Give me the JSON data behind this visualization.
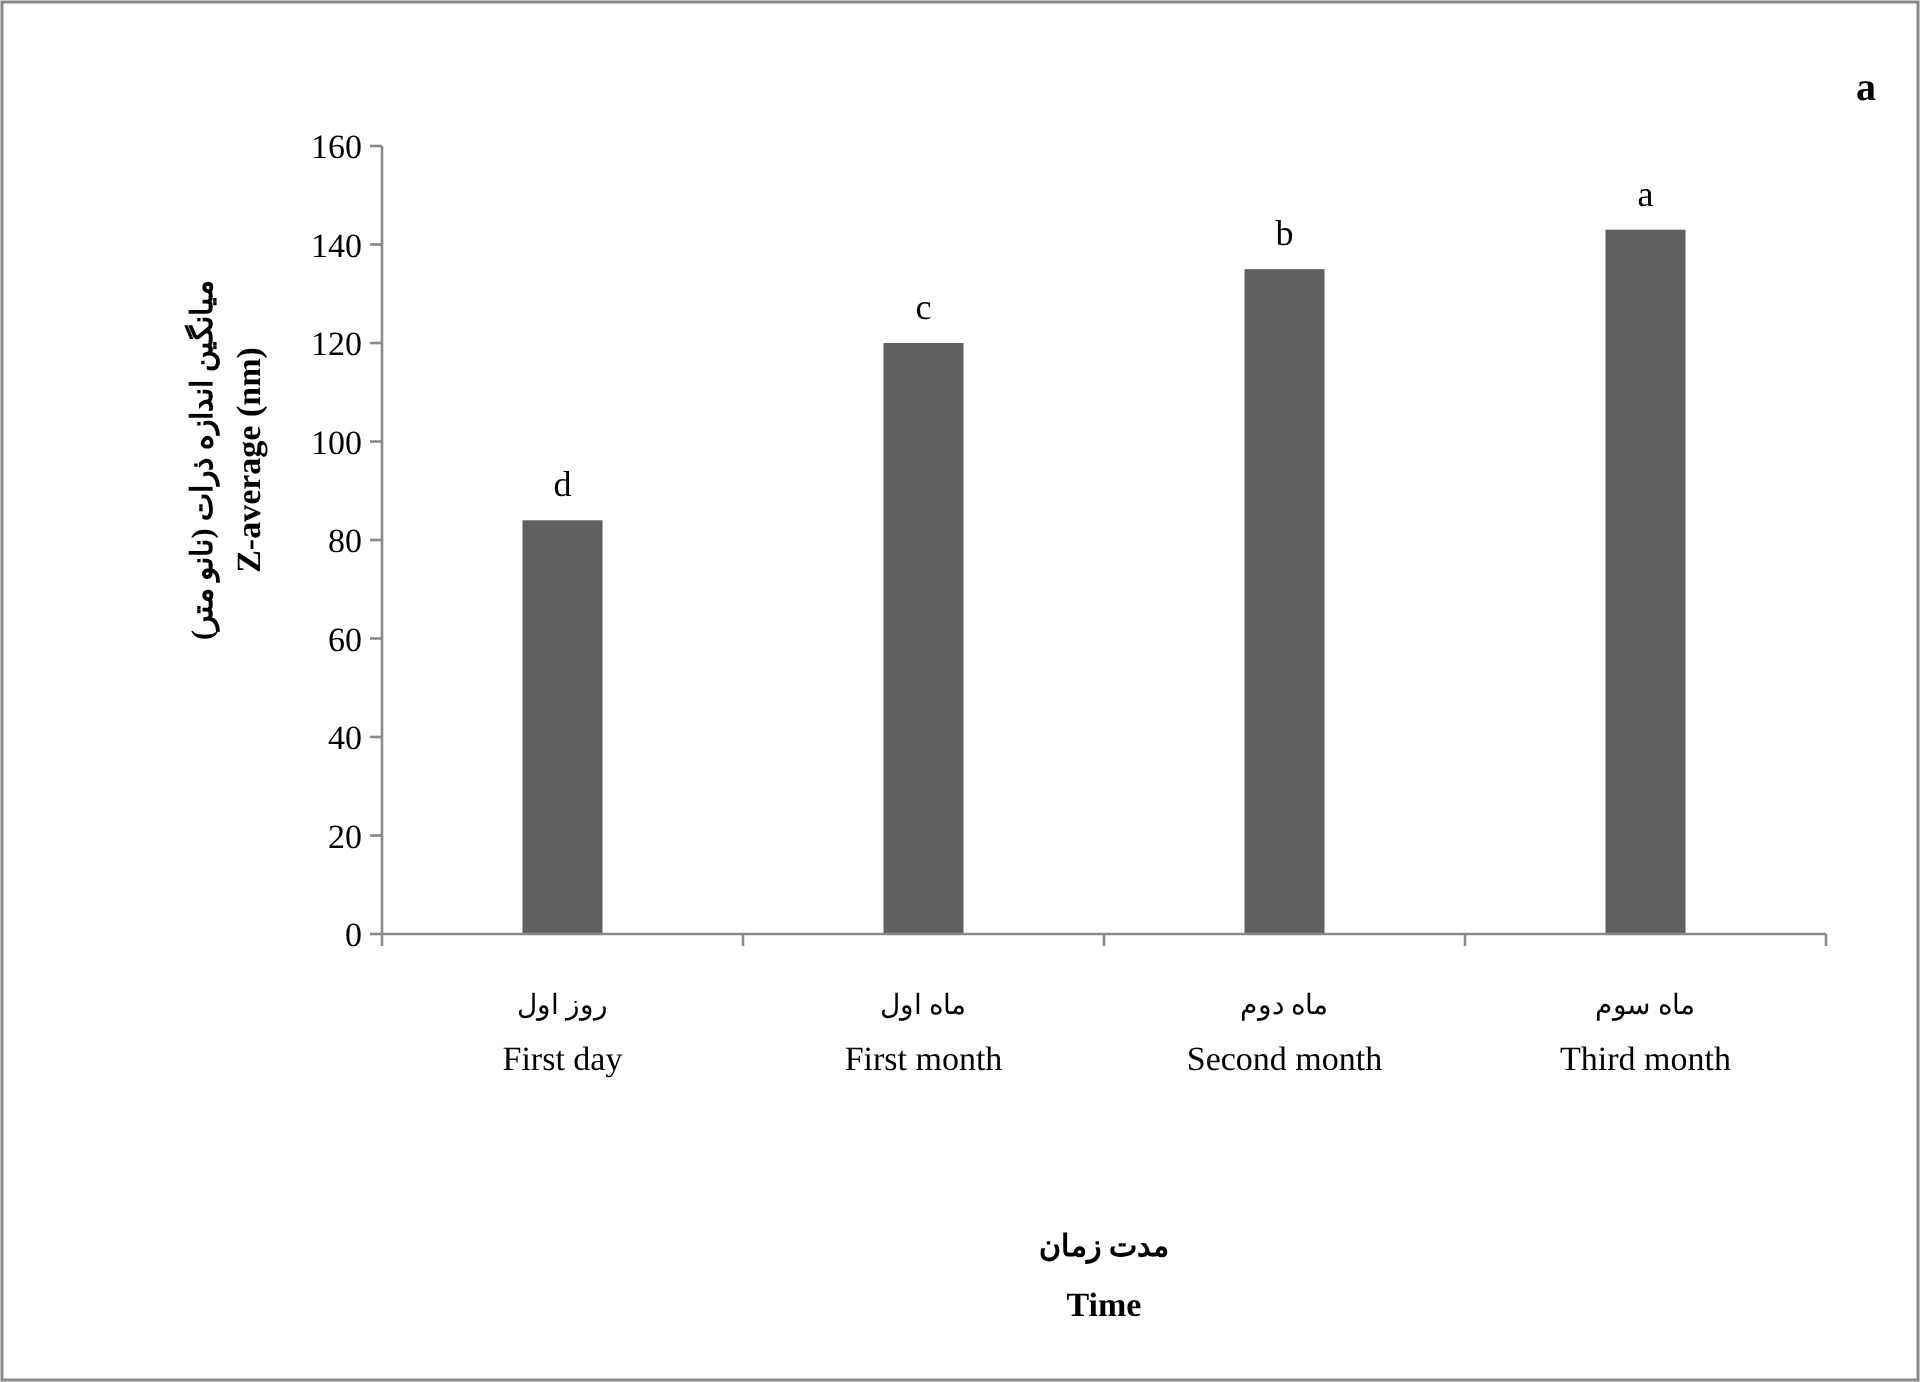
{
  "chart_data": {
    "type": "bar",
    "categories": [
      "روز اول\nFirst day",
      "ماه اول\nFirst month",
      "ماه دوم\nSecond  month",
      "ماه سوم\nThird month"
    ],
    "values": [
      84,
      120,
      135,
      143
    ],
    "color": "#606060",
    "xlabel": "مدت زمان\nTime",
    "ylabel": "میانگین اندازه ذرات (نانو متر)\nZ-average (nm)",
    "ylim": [
      0,
      160
    ],
    "yticks": [
      0,
      20,
      40,
      60,
      80,
      100,
      120,
      140,
      160
    ],
    "grid": false,
    "annotations": [
      "a",
      {
        "text": "d",
        "x": "روز اول\nFirst day",
        "y": 84
      },
      {
        "text": "c",
        "x": "ماه اول\nFirst month",
        "y": 120
      },
      {
        "text": "b",
        "x": "ماه دوم\nSecond  month",
        "y": 135
      },
      {
        "text": "a",
        "x": "ماه سوم\nThird month",
        "y": 143
      }
    ]
  }
}
